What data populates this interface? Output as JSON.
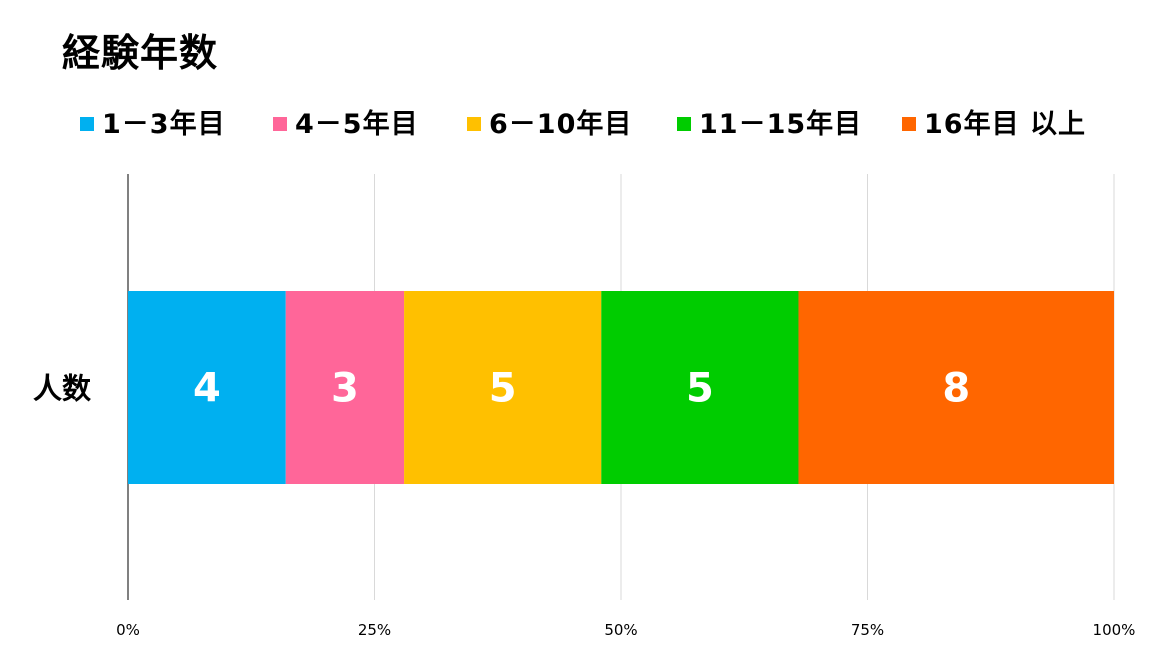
{
  "chart_data": {
    "type": "bar",
    "orientation": "horizontal",
    "stacking": "percent",
    "title": "経験年数",
    "categories": [
      "人数"
    ],
    "series": [
      {
        "name": "1－3年目",
        "values": [
          4
        ],
        "color": "#00B0F0"
      },
      {
        "name": "4－5年目",
        "values": [
          3
        ],
        "color": "#FF6699"
      },
      {
        "name": "6－10年目",
        "values": [
          5
        ],
        "color": "#FFC000"
      },
      {
        "name": "11－15年目",
        "values": [
          5
        ],
        "color": "#00CC00"
      },
      {
        "name": "16年目 以上",
        "values": [
          8
        ],
        "color": "#FF6600"
      }
    ],
    "xlim": [
      0,
      100
    ],
    "xticks": [
      "0%",
      "25%",
      "50%",
      "75%",
      "100%"
    ],
    "grid": true,
    "legend_position": "top",
    "data_label_color": "#FFFFFF"
  }
}
